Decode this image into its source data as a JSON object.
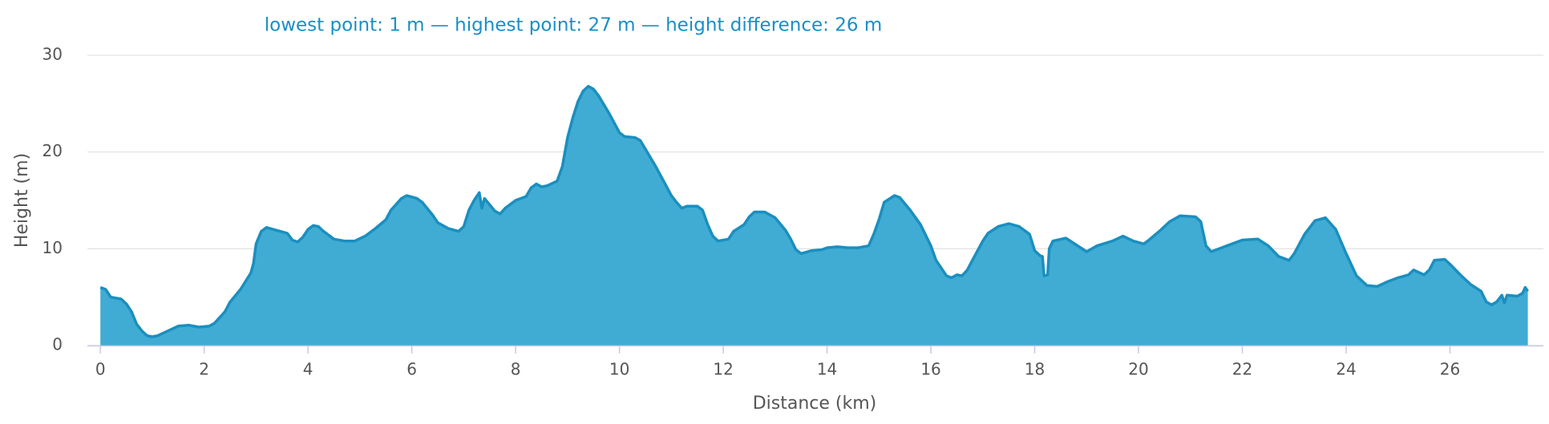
{
  "chart_data": {
    "type": "area",
    "title": "lowest point: 1 m  —  highest point: 27 m   —  height difference: 26 m",
    "x_label": "Distance (km)",
    "y_label": "Height (m)",
    "color": "#40acd3",
    "line_color": "#1a8fc0",
    "xlim": [
      -0.25,
      27.8
    ],
    "ylim": [
      0,
      30
    ],
    "xticks": [
      0,
      2,
      4,
      6,
      8,
      10,
      12,
      14,
      16,
      18,
      20,
      22,
      24,
      26
    ],
    "yticks": [
      0,
      10,
      20,
      30
    ],
    "grid": true,
    "x": [
      0,
      0.1,
      0.2,
      0.4,
      0.5,
      0.6,
      0.7,
      0.8,
      0.9,
      1.0,
      1.1,
      1.3,
      1.5,
      1.7,
      1.9,
      2.1,
      2.2,
      2.4,
      2.5,
      2.7,
      2.9,
      2.95,
      3.0,
      3.1,
      3.2,
      3.4,
      3.6,
      3.7,
      3.8,
      3.9,
      4.0,
      4.1,
      4.2,
      4.3,
      4.5,
      4.7,
      4.9,
      5.1,
      5.3,
      5.5,
      5.6,
      5.8,
      5.9,
      6.1,
      6.2,
      6.4,
      6.5,
      6.7,
      6.9,
      7.0,
      7.1,
      7.2,
      7.3,
      7.35,
      7.4,
      7.6,
      7.7,
      7.8,
      8.0,
      8.2,
      8.3,
      8.4,
      8.5,
      8.6,
      8.8,
      8.9,
      9.0,
      9.1,
      9.2,
      9.3,
      9.4,
      9.5,
      9.6,
      9.8,
      10.0,
      10.1,
      10.3,
      10.4,
      10.5,
      10.7,
      10.9,
      11.0,
      11.1,
      11.2,
      11.3,
      11.5,
      11.6,
      11.7,
      11.8,
      11.9,
      12.1,
      12.2,
      12.4,
      12.5,
      12.6,
      12.8,
      13.0,
      13.2,
      13.3,
      13.4,
      13.5,
      13.7,
      13.9,
      14.0,
      14.2,
      14.4,
      14.6,
      14.8,
      14.9,
      15.0,
      15.1,
      15.3,
      15.4,
      15.6,
      15.8,
      16.0,
      16.1,
      16.3,
      16.4,
      16.5,
      16.6,
      16.7,
      16.8,
      17.0,
      17.1,
      17.3,
      17.5,
      17.7,
      17.9,
      18.0,
      18.1,
      18.15,
      18.18,
      18.25,
      18.28,
      18.35,
      18.6,
      18.8,
      19.0,
      19.2,
      19.5,
      19.7,
      19.9,
      20.1,
      20.2,
      20.4,
      20.6,
      20.8,
      21.1,
      21.2,
      21.3,
      21.4,
      21.7,
      22.0,
      22.3,
      22.5,
      22.7,
      22.9,
      23.0,
      23.2,
      23.4,
      23.6,
      23.8,
      24.0,
      24.2,
      24.4,
      24.6,
      24.8,
      25.0,
      25.2,
      25.3,
      25.5,
      25.6,
      25.7,
      25.9,
      26.0,
      26.2,
      26.4,
      26.6,
      26.7,
      26.8,
      26.9,
      27.0,
      27.05,
      27.1,
      27.3,
      27.4,
      27.45,
      27.5
    ],
    "y": [
      6,
      5.8,
      5,
      4.8,
      4.3,
      3.5,
      2.2,
      1.5,
      1,
      0.9,
      1,
      1.5,
      2,
      2.1,
      1.9,
      2,
      2.3,
      3.5,
      4.5,
      5.8,
      7.5,
      8.5,
      10.5,
      11.8,
      12.2,
      11.9,
      11.6,
      10.9,
      10.7,
      11.2,
      12,
      12.4,
      12.3,
      11.8,
      11,
      10.8,
      10.8,
      11.3,
      12.1,
      13,
      14,
      15.2,
      15.5,
      15.2,
      14.8,
      13.5,
      12.7,
      12.1,
      11.8,
      12.3,
      14,
      15,
      15.8,
      14.2,
      15.2,
      13.9,
      13.6,
      14.2,
      15,
      15.4,
      16.3,
      16.7,
      16.4,
      16.5,
      17,
      18.5,
      21.5,
      23.5,
      25.2,
      26.3,
      26.8,
      26.5,
      25.8,
      24,
      22,
      21.6,
      21.5,
      21.2,
      20.3,
      18.5,
      16.5,
      15.5,
      14.8,
      14.2,
      14.4,
      14.4,
      14,
      12.5,
      11.3,
      10.8,
      11,
      11.8,
      12.5,
      13.3,
      13.8,
      13.8,
      13.2,
      11.9,
      11,
      9.9,
      9.5,
      9.8,
      9.9,
      10.1,
      10.2,
      10.1,
      10.1,
      10.3,
      11.5,
      13,
      14.8,
      15.5,
      15.3,
      14,
      12.5,
      10.3,
      8.8,
      7.2,
      7,
      7.3,
      7.2,
      7.8,
      8.8,
      10.8,
      11.6,
      12.3,
      12.6,
      12.3,
      11.5,
      9.8,
      9.3,
      9.2,
      7.2,
      7.3,
      10,
      10.8,
      11.1,
      10.4,
      9.7,
      10.3,
      10.8,
      11.3,
      10.8,
      10.5,
      10.9,
      11.8,
      12.8,
      13.4,
      13.3,
      12.8,
      10.3,
      9.7,
      10.3,
      10.9,
      11,
      10.3,
      9.2,
      8.8,
      9.5,
      11.5,
      12.9,
      13.2,
      12,
      9.5,
      7.2,
      6.2,
      6.1,
      6.6,
      7,
      7.3,
      7.8,
      7.3,
      7.8,
      8.8,
      8.9,
      8.4,
      7.3,
      6.3,
      5.6,
      4.5,
      4.2,
      4.5,
      5.2,
      4.4,
      5.2,
      5.1,
      5.4,
      6,
      5.6
    ]
  }
}
